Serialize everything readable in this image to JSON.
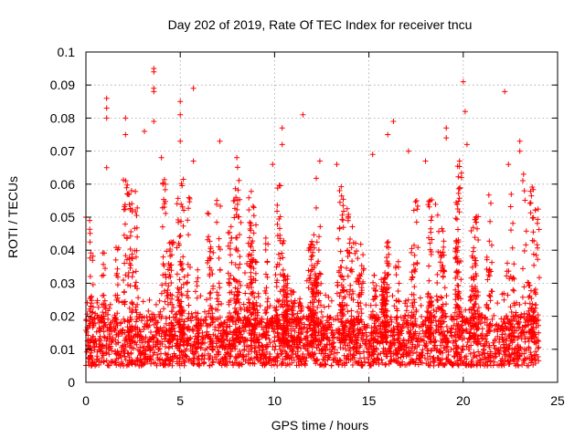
{
  "chart_data": {
    "type": "scatter",
    "title": "Day 202 of 2019, Rate Of TEC Index for receiver tncu",
    "xlabel": "GPS time / hours",
    "ylabel": "ROTI / TECUs",
    "xlim": [
      0,
      25
    ],
    "ylim": [
      0,
      0.1
    ],
    "xticks": [
      0,
      5,
      10,
      15,
      20,
      25
    ],
    "xtick_labels": [
      "0",
      "5",
      "10",
      "15",
      "20",
      "25"
    ],
    "yticks": [
      0,
      0.01,
      0.02,
      0.03,
      0.04,
      0.05,
      0.06,
      0.07,
      0.08,
      0.09,
      0.1
    ],
    "ytick_labels": [
      "0",
      "0.01",
      "0.02",
      "0.03",
      "0.04",
      "0.05",
      "0.06",
      "0.07",
      "0.08",
      "0.09",
      "0.1"
    ],
    "grid": true,
    "marker": "+",
    "marker_color": "#ff0000",
    "series": [
      {
        "name": "ROTI",
        "x_range": [
          0,
          24
        ],
        "typical_band": [
          0.005,
          0.02
        ],
        "notable_points": [
          {
            "x": 0.0,
            "y": 0.05
          },
          {
            "x": 0.2,
            "y": 0.049
          },
          {
            "x": 1.1,
            "y": 0.086
          },
          {
            "x": 1.1,
            "y": 0.083
          },
          {
            "x": 1.1,
            "y": 0.08
          },
          {
            "x": 1.1,
            "y": 0.065
          },
          {
            "x": 2.1,
            "y": 0.08
          },
          {
            "x": 2.1,
            "y": 0.075
          },
          {
            "x": 3.1,
            "y": 0.076
          },
          {
            "x": 3.6,
            "y": 0.095
          },
          {
            "x": 3.6,
            "y": 0.094
          },
          {
            "x": 3.6,
            "y": 0.089
          },
          {
            "x": 3.6,
            "y": 0.088
          },
          {
            "x": 3.6,
            "y": 0.079
          },
          {
            "x": 4.0,
            "y": 0.068
          },
          {
            "x": 5.0,
            "y": 0.085
          },
          {
            "x": 5.0,
            "y": 0.081
          },
          {
            "x": 5.0,
            "y": 0.073
          },
          {
            "x": 5.7,
            "y": 0.089
          },
          {
            "x": 5.7,
            "y": 0.067
          },
          {
            "x": 7.1,
            "y": 0.073
          },
          {
            "x": 8.0,
            "y": 0.068
          },
          {
            "x": 9.9,
            "y": 0.066
          },
          {
            "x": 10.4,
            "y": 0.077
          },
          {
            "x": 10.4,
            "y": 0.072
          },
          {
            "x": 11.5,
            "y": 0.081
          },
          {
            "x": 12.4,
            "y": 0.067
          },
          {
            "x": 13.3,
            "y": 0.066
          },
          {
            "x": 15.2,
            "y": 0.069
          },
          {
            "x": 16.0,
            "y": 0.075
          },
          {
            "x": 16.3,
            "y": 0.079
          },
          {
            "x": 17.1,
            "y": 0.07
          },
          {
            "x": 18.0,
            "y": 0.067
          },
          {
            "x": 19.1,
            "y": 0.077
          },
          {
            "x": 19.1,
            "y": 0.074
          },
          {
            "x": 19.8,
            "y": 0.067
          },
          {
            "x": 20.0,
            "y": 0.091
          },
          {
            "x": 20.1,
            "y": 0.082
          },
          {
            "x": 20.2,
            "y": 0.072
          },
          {
            "x": 22.2,
            "y": 0.088
          },
          {
            "x": 22.4,
            "y": 0.066
          },
          {
            "x": 23.0,
            "y": 0.073
          },
          {
            "x": 23.0,
            "y": 0.07
          },
          {
            "x": 23.2,
            "y": 0.063
          }
        ]
      }
    ]
  }
}
